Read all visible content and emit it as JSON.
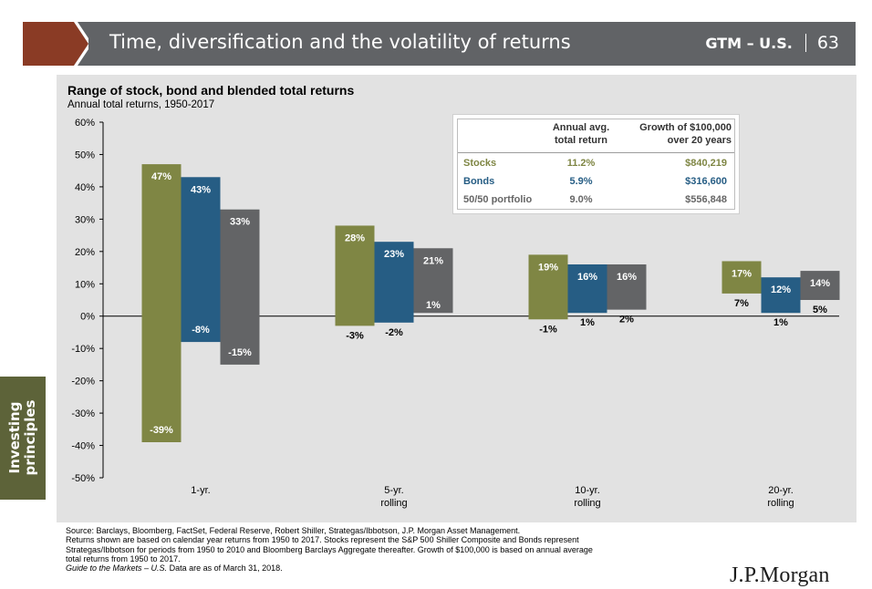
{
  "header": {
    "title": "Time, diversification and the volatility of returns",
    "gtm": "GTM – U.S.",
    "page_number": "63"
  },
  "side_tab": {
    "line1": "Investing",
    "line2": "principles"
  },
  "colors": {
    "stocks": "#7f8644",
    "bonds": "#265d84",
    "portfolio": "#636466",
    "header": "#616366",
    "accent": "#8a3b25",
    "side_tab": "#5d6339",
    "panel": "#e2e2e2"
  },
  "summary_table": {
    "header_return": [
      "Annual avg.",
      "total return"
    ],
    "header_growth": [
      "Growth of $100,000",
      "over 20 years"
    ],
    "rows": [
      {
        "name": "Stocks",
        "return": "11.2%",
        "growth": "$840,219"
      },
      {
        "name": "Bonds",
        "return": "5.9%",
        "growth": "$316,600"
      },
      {
        "name": "50/50 portfolio",
        "return": "9.0%",
        "growth": "$556,848"
      }
    ]
  },
  "chart_data": {
    "type": "bar",
    "subtype": "floating-range",
    "title": "Range of stock, bond and blended total returns",
    "subtitle": "Annual total returns, 1950-2017",
    "categories": [
      [
        "1-yr."
      ],
      [
        "5-yr.",
        "rolling"
      ],
      [
        "10-yr.",
        "rolling"
      ],
      [
        "20-yr.",
        "rolling"
      ]
    ],
    "y_ticks": [
      "60%",
      "50%",
      "40%",
      "30%",
      "20%",
      "10%",
      "0%",
      "-10%",
      "-20%",
      "-30%",
      "-40%",
      "-50%"
    ],
    "ylim": [
      -50,
      60
    ],
    "series": [
      {
        "key": "stocks",
        "low": [
          -39,
          -3,
          -1,
          7
        ],
        "high": [
          47,
          28,
          19,
          17
        ],
        "low_labels": [
          "-39%",
          "-3%",
          "-1%",
          "7%"
        ],
        "high_labels": [
          "47%",
          "28%",
          "19%",
          "17%"
        ]
      },
      {
        "key": "bonds",
        "low": [
          -8,
          -2,
          1,
          1
        ],
        "high": [
          43,
          23,
          16,
          12
        ],
        "low_labels": [
          "-8%",
          "-2%",
          "1%",
          "1%"
        ],
        "high_labels": [
          "43%",
          "23%",
          "16%",
          "12%"
        ]
      },
      {
        "key": "portfolio",
        "low": [
          -15,
          1,
          2,
          5
        ],
        "high": [
          33,
          21,
          16,
          14
        ],
        "low_labels": [
          "-15%",
          "1%",
          "2%",
          "5%"
        ],
        "high_labels": [
          "33%",
          "21%",
          "16%",
          "14%"
        ]
      }
    ]
  },
  "footnote": {
    "line1": "Source: Barclays, Bloomberg, FactSet, Federal Reserve, Robert Shiller, Strategas/Ibbotson, J.P. Morgan Asset Management.",
    "line2": "Returns shown are based on calendar year returns from 1950 to 2017. Stocks represent the S&P 500 Shiller Composite and Bonds represent",
    "line3": "Strategas/Ibbotson for periods from 1950 to 2010 and Bloomberg Barclays Aggregate thereafter. Growth of $100,000 is based on annual average",
    "line4": "total returns from 1950 to 2017.",
    "guide": "Guide to the Markets – U.S.",
    "date": " Data are as of March 31, 2018."
  },
  "logo": "J.P.Morgan"
}
